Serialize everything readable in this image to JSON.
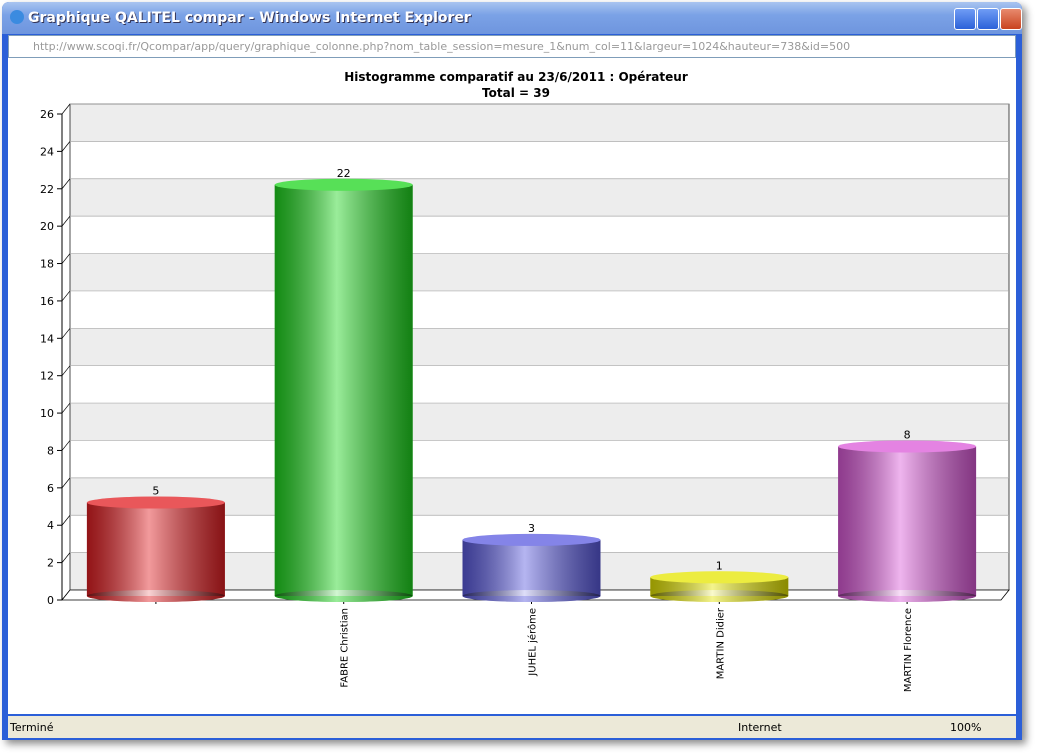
{
  "window": {
    "title": "Graphique QALITEL compar - Windows Internet Explorer",
    "url": "http://www.scoqi.fr/Qcompar/app/query/graphique_colonne.php?nom_table_session=mesure_1&num_col=11&largeur=1024&hauteur=738&id=500",
    "status": "Terminé",
    "zone": "Internet",
    "zoom": "100%"
  },
  "chart_data": {
    "type": "bar",
    "title": "Histogramme comparatif au 23/6/2011 :  Opérateur",
    "subtitle": "Total = 39",
    "categories": [
      null,
      "FABRE Christian",
      "JUHEL jérôme",
      "MARTIN Didier",
      "MARTIN Florence"
    ],
    "values": [
      5,
      22,
      3,
      1,
      8
    ],
    "colors": [
      "#e21f23",
      "#1fd61f",
      "#5b5be0",
      "#e6e600",
      "#db5ad9"
    ],
    "ylim": [
      0,
      26
    ],
    "yticks": [
      0,
      2,
      4,
      6,
      8,
      10,
      12,
      14,
      16,
      18,
      20,
      22,
      24,
      26
    ],
    "grid": true
  }
}
